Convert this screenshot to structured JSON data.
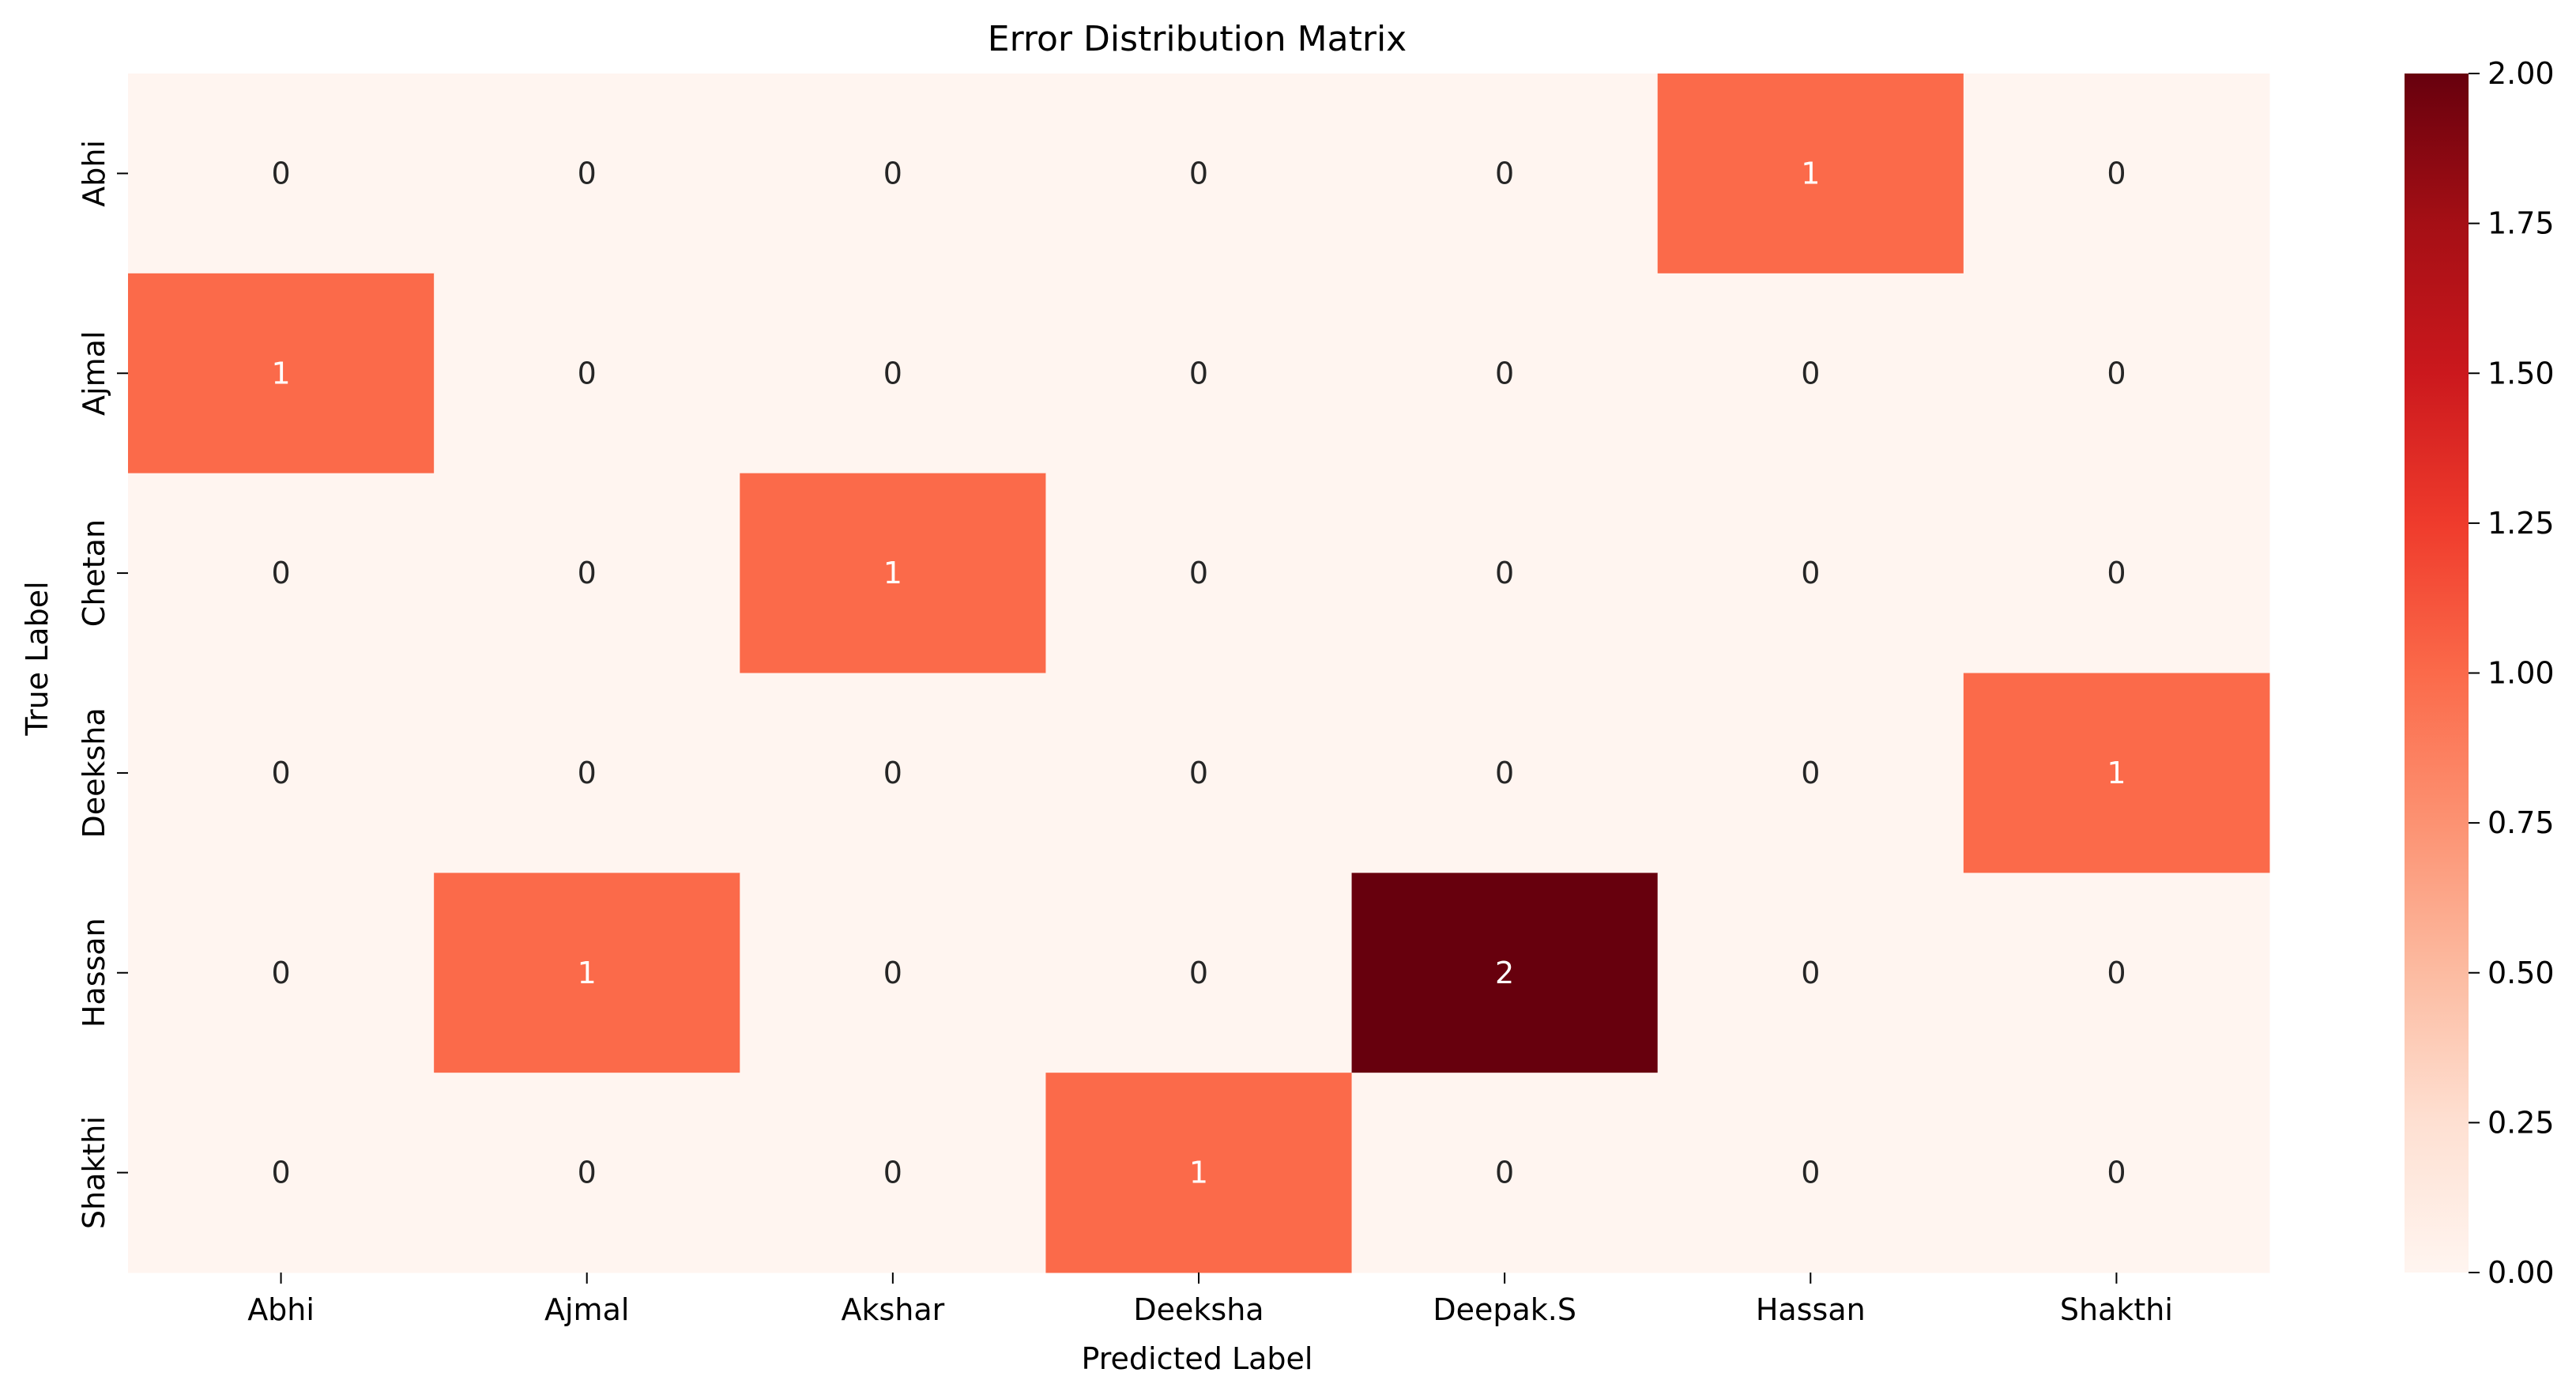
{
  "chart_data": {
    "type": "heatmap",
    "title": "Error Distribution Matrix",
    "xlabel": "Predicted Label",
    "ylabel": "True Label",
    "x_categories": [
      "Abhi",
      "Ajmal",
      "Akshar",
      "Deeksha",
      "Deepak.S",
      "Hassan",
      "Shakthi"
    ],
    "y_categories": [
      "Abhi",
      "Ajmal",
      "Chetan",
      "Deeksha",
      "Hassan",
      "Shakthi"
    ],
    "values": [
      [
        0,
        0,
        0,
        0,
        0,
        1,
        0
      ],
      [
        1,
        0,
        0,
        0,
        0,
        0,
        0
      ],
      [
        0,
        0,
        1,
        0,
        0,
        0,
        0
      ],
      [
        0,
        0,
        0,
        0,
        0,
        0,
        1
      ],
      [
        0,
        1,
        0,
        0,
        2,
        0,
        0
      ],
      [
        0,
        0,
        0,
        1,
        0,
        0,
        0
      ]
    ],
    "colorbar": {
      "range": [
        0,
        2
      ],
      "tick_values": [
        0,
        0.25,
        0.5,
        0.75,
        1,
        1.25,
        1.5,
        1.75,
        2
      ],
      "tick_labels": [
        "0.00",
        "0.25",
        "0.50",
        "0.75",
        "1.00",
        "1.25",
        "1.50",
        "1.75",
        "2.00"
      ],
      "colormap": "Reds",
      "color_stops": [
        "#fff5f0",
        "#fee0d2",
        "#fcbba1",
        "#fc9272",
        "#fb6a4a",
        "#ef3b2c",
        "#cb181d",
        "#a50f15",
        "#67000d"
      ]
    },
    "annotation_colors": {
      "dark_text": "#262626",
      "light_text": "#ffffff"
    }
  }
}
